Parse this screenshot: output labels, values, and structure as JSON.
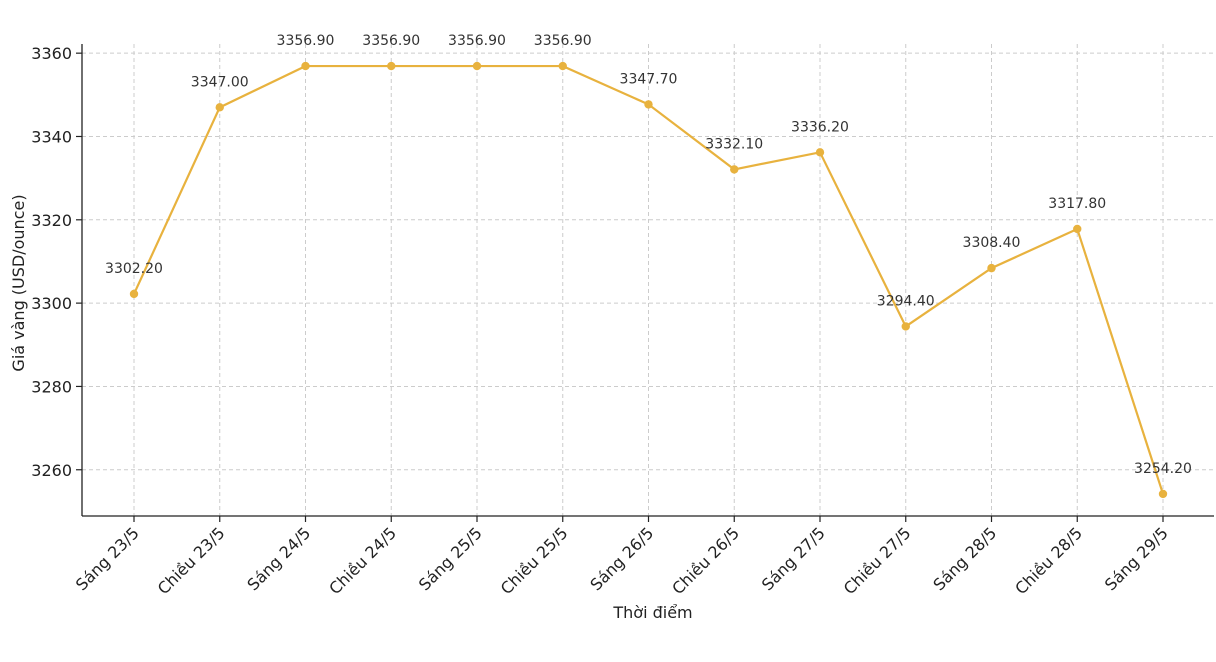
{
  "chart_data": {
    "type": "line",
    "title": "",
    "xlabel": "Thời điểm",
    "ylabel": "Giá vàng (USD/ounce)",
    "categories": [
      "Sáng 23/5",
      "Chiều 23/5",
      "Sáng 24/5",
      "Chiều 24/5",
      "Sáng 25/5",
      "Chiều 25/5",
      "Sáng 26/5",
      "Chiều 26/5",
      "Sáng 27/5",
      "Chiều 27/5",
      "Sáng 28/5",
      "Chiều 28/5",
      "Sáng 29/5"
    ],
    "series": [
      {
        "values": [
          3302.2,
          3347.0,
          3356.9,
          3356.9,
          3356.9,
          3356.9,
          3347.7,
          3332.1,
          3336.2,
          3294.4,
          3308.4,
          3317.8,
          3254.2
        ],
        "labels": [
          "3302.20",
          "3347.00",
          "3356.90",
          "3356.90",
          "3356.90",
          "3356.90",
          "3347.70",
          "3332.10",
          "3336.20",
          "3294.40",
          "3308.40",
          "3317.80",
          "3254.20"
        ],
        "color": "#e8b23e"
      }
    ],
    "ylim": [
      3248.9,
      3362.2
    ],
    "yticks": [
      3260,
      3280,
      3300,
      3320,
      3340,
      3360
    ],
    "grid": true,
    "legend": "none"
  }
}
